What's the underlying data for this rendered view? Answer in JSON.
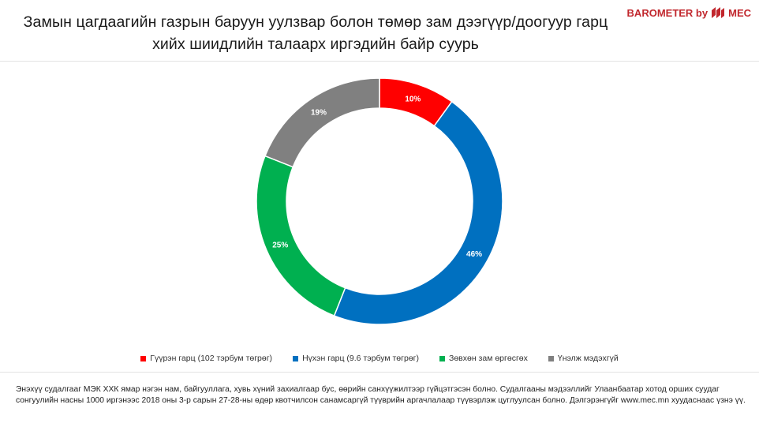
{
  "brand": {
    "label": "BAROMETER by",
    "mark": "MEC",
    "color": "#c1272d"
  },
  "title": {
    "line1": "Замын цагдаагийн газрын баруун уулзвар болон төмөр зам дээгүүр/доогуур гарц",
    "line2": "хийх  шиидлийн талаарх иргэдийн байр суурь"
  },
  "chart_data": {
    "type": "pie",
    "style": "donut",
    "slices": [
      {
        "label": "Гүүрэн гарц (102 тэрбум төгрөг)",
        "value": 10,
        "display": "10%",
        "color": "#ff0000"
      },
      {
        "label": "Нүхэн гарц (9.6 тэрбум төгрөг)",
        "value": 46,
        "display": "46%",
        "color": "#0070c0"
      },
      {
        "label": "Зөвхөн зам өргөсгөх",
        "value": 25,
        "display": "25%",
        "color": "#00b050"
      },
      {
        "label": "Үнэлж мэдэхгүй",
        "value": 19,
        "display": "19%",
        "color": "#808080"
      }
    ],
    "legend_position": "bottom"
  },
  "footnote": "Энэхүү судалгааг МЭК ХХК ямар нэгэн нам, байгууллага, хувь хүний захиалгаар бус, өөрийн санхүүжилтээр гүйцэтгэсэн болно. Судалгааны мэдээллийг Улаанбаатар хотод орших суудаг сонгуулийн насны 1000 иргэнээс 2018 оны 3-р сарын 27-28-ны өдөр квотчилсон санамсаргүй түүврийн аргачлалаар түүвэрлэж цуглуулсан болно. Дэлгэрэнгүйг www.mec.mn хуудаснаас үзнэ үү."
}
